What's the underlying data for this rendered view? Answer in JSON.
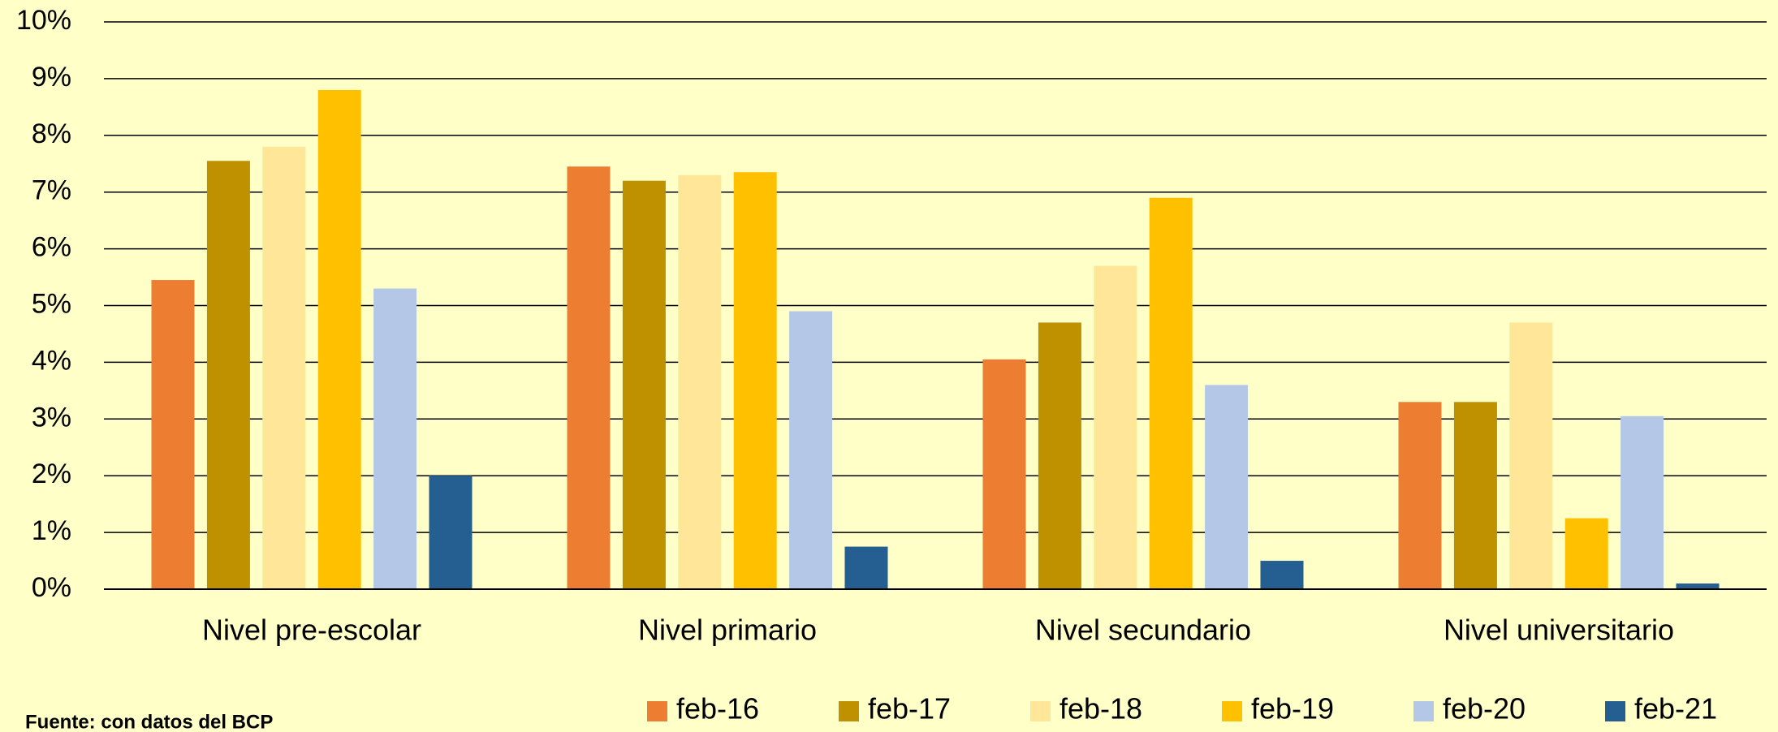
{
  "chart_data": {
    "type": "bar",
    "categories": [
      "Nivel pre-escolar",
      "Nivel primario",
      "Nivel secundario",
      "Nivel universitario"
    ],
    "series": [
      {
        "name": "feb-16",
        "color": "#ED7D31",
        "values": [
          5.45,
          7.45,
          4.05,
          3.3
        ]
      },
      {
        "name": "feb-17",
        "color": "#BF9000",
        "values": [
          7.55,
          7.2,
          4.7,
          3.3
        ]
      },
      {
        "name": "feb-18",
        "color": "#FFE699",
        "values": [
          7.8,
          7.3,
          5.7,
          4.7
        ]
      },
      {
        "name": "feb-19",
        "color": "#FFC000",
        "values": [
          8.8,
          7.35,
          6.9,
          1.25
        ]
      },
      {
        "name": "feb-20",
        "color": "#B4C7E7",
        "values": [
          5.3,
          4.9,
          3.6,
          3.05
        ]
      },
      {
        "name": "feb-21",
        "color": "#255E91",
        "values": [
          2.0,
          0.75,
          0.5,
          0.1
        ]
      }
    ],
    "ylim": [
      0,
      10
    ],
    "yticks": [
      {
        "value": 0,
        "label": "0%"
      },
      {
        "value": 1,
        "label": "1%"
      },
      {
        "value": 2,
        "label": "2%"
      },
      {
        "value": 3,
        "label": "3%"
      },
      {
        "value": 4,
        "label": "4%"
      },
      {
        "value": 5,
        "label": "5%"
      },
      {
        "value": 6,
        "label": "6%"
      },
      {
        "value": 7,
        "label": "7%"
      },
      {
        "value": 8,
        "label": "8%"
      },
      {
        "value": 9,
        "label": "9%"
      },
      {
        "value": 10,
        "label": "10%"
      }
    ],
    "grid": true,
    "legend": "bottom",
    "source": "Fuente: con datos del BCP"
  }
}
